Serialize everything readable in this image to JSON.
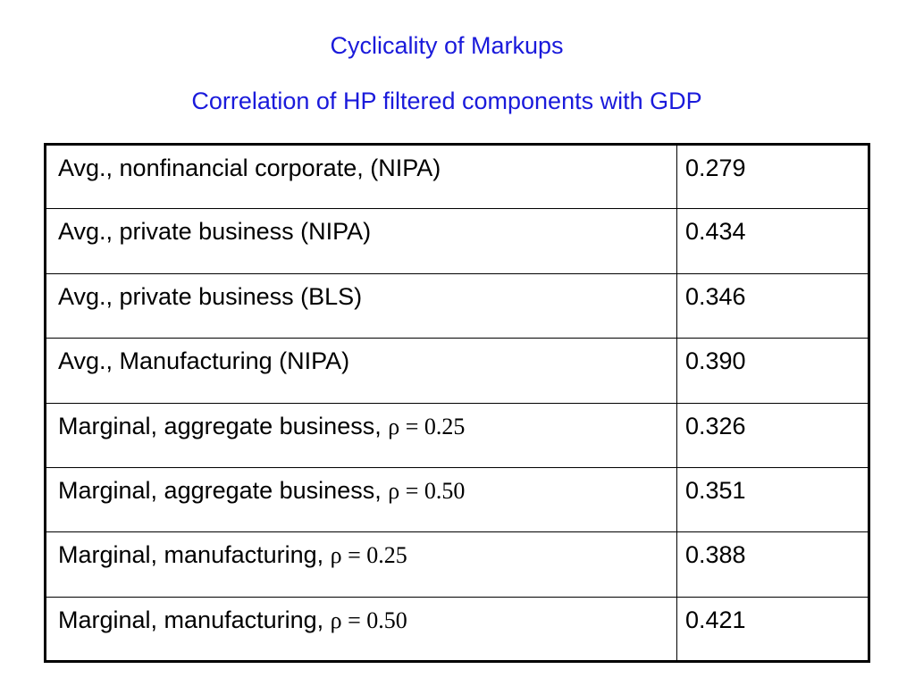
{
  "title": "Cyclicality of Markups",
  "subtitle": "Correlation of HP filtered components with GDP",
  "rows": [
    {
      "label": "Avg., nonfinancial corporate, (NIPA)",
      "math": "",
      "value": "0.279"
    },
    {
      "label": "Avg., private business (NIPA)",
      "math": "",
      "value": "0.434"
    },
    {
      "label": "Avg., private business (BLS)",
      "math": "",
      "value": "0.346"
    },
    {
      "label": "Avg., Manufacturing (NIPA)",
      "math": "",
      "value": "0.390"
    },
    {
      "label": "Marginal, aggregate business, ",
      "math": "ρ = 0.25",
      "value": "0.326"
    },
    {
      "label": "Marginal, aggregate business, ",
      "math": "ρ = 0.50",
      "value": "0.351"
    },
    {
      "label": "Marginal, manufacturing, ",
      "math": "ρ = 0.25",
      "value": "0.388"
    },
    {
      "label": "Marginal, manufacturing, ",
      "math": "ρ = 0.50",
      "value": "0.421"
    }
  ]
}
